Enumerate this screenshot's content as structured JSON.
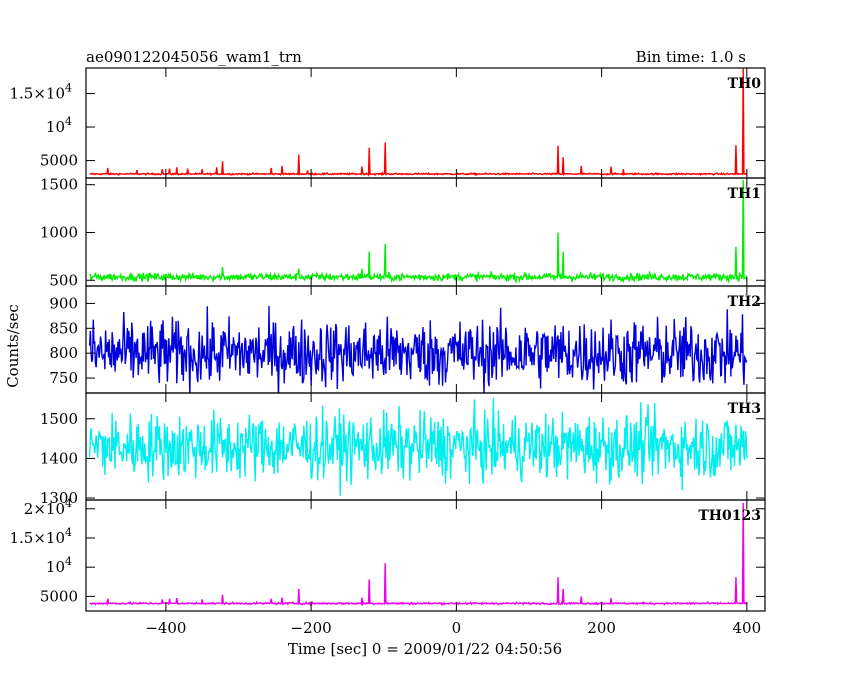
{
  "header": {
    "left_title": "ae090122045056_wam1_trn",
    "right_title": "Bin time: 1.0 s"
  },
  "chart_data": {
    "type": "line",
    "xlabel": "Time [sec] 0 = 2009/01/22 04:50:56",
    "ylabel": "Counts/sec",
    "xlim": [
      -510,
      425
    ],
    "x_ticks": [
      -400,
      -200,
      0,
      200,
      400
    ],
    "x_tick_labels": [
      "−400",
      "−200",
      "0",
      "200",
      "400"
    ],
    "panels": [
      {
        "name": "TH0",
        "color": "#ff0000",
        "ylim": [
          2400,
          18800
        ],
        "y_ticks": [
          {
            "value": 15000,
            "label_base": "1.5×10",
            "label_exp": "4"
          },
          {
            "value": 10000,
            "label_base": "10",
            "label_exp": "4"
          },
          {
            "value": 5000,
            "label_base": "5000",
            "label_exp": ""
          }
        ],
        "baseline": 3000,
        "noise": 60,
        "range": [
          -505,
          400
        ],
        "spikes": [
          [
            -480,
            3900
          ],
          [
            -440,
            3600
          ],
          [
            -405,
            3700
          ],
          [
            -395,
            3800
          ],
          [
            -385,
            4000
          ],
          [
            -370,
            3800
          ],
          [
            -350,
            3700
          ],
          [
            -330,
            4000
          ],
          [
            -322,
            4900
          ],
          [
            -255,
            3900
          ],
          [
            -240,
            4200
          ],
          [
            -217,
            5900
          ],
          [
            -205,
            3500
          ],
          [
            -130,
            4100
          ],
          [
            -120,
            6900
          ],
          [
            -98,
            7700
          ],
          [
            140,
            7200
          ],
          [
            147,
            5500
          ],
          [
            172,
            4200
          ],
          [
            213,
            4100
          ],
          [
            230,
            3700
          ],
          [
            385,
            7300
          ],
          [
            395,
            18700
          ]
        ]
      },
      {
        "name": "TH1",
        "color": "#00ee00",
        "ylim": [
          440,
          1570
        ],
        "y_ticks": [
          {
            "value": 1500,
            "label_base": "1500",
            "label_exp": ""
          },
          {
            "value": 1000,
            "label_base": "1000",
            "label_exp": ""
          },
          {
            "value": 500,
            "label_base": "500",
            "label_exp": ""
          }
        ],
        "baseline": 535,
        "noise": 20,
        "range": [
          -505,
          400
        ],
        "spikes": [
          [
            -322,
            640
          ],
          [
            -217,
            620
          ],
          [
            -130,
            620
          ],
          [
            -120,
            800
          ],
          [
            -98,
            880
          ],
          [
            140,
            1000
          ],
          [
            147,
            800
          ],
          [
            385,
            850
          ],
          [
            395,
            1550
          ]
        ]
      },
      {
        "name": "TH2",
        "color": "#0000dd",
        "ylim": [
          720,
          935
        ],
        "y_ticks": [
          {
            "value": 900,
            "label_base": "900",
            "label_exp": ""
          },
          {
            "value": 850,
            "label_base": "850",
            "label_exp": ""
          },
          {
            "value": 800,
            "label_base": "800",
            "label_exp": ""
          },
          {
            "value": 750,
            "label_base": "750",
            "label_exp": ""
          }
        ],
        "baseline": 800,
        "noise": 34,
        "range": [
          -505,
          400
        ],
        "spikes": []
      },
      {
        "name": "TH3",
        "color": "#00eeee",
        "ylim": [
          1295,
          1565
        ],
        "y_ticks": [
          {
            "value": 1500,
            "label_base": "1500",
            "label_exp": ""
          },
          {
            "value": 1400,
            "label_base": "1400",
            "label_exp": ""
          },
          {
            "value": 1300,
            "label_base": "1300",
            "label_exp": ""
          }
        ],
        "baseline": 1430,
        "noise": 42,
        "range": [
          -505,
          400
        ],
        "spikes": []
      },
      {
        "name": "TH0123",
        "color": "#ee00ee",
        "ylim": [
          2500,
          21500
        ],
        "y_ticks": [
          {
            "value": 20000,
            "label_base": "2×10",
            "label_exp": "4"
          },
          {
            "value": 15000,
            "label_base": "1.5×10",
            "label_exp": "4"
          },
          {
            "value": 10000,
            "label_base": "10",
            "label_exp": "4"
          },
          {
            "value": 5000,
            "label_base": "5000",
            "label_exp": ""
          }
        ],
        "baseline": 3800,
        "noise": 80,
        "range": [
          -505,
          400
        ],
        "spikes": [
          [
            -480,
            4600
          ],
          [
            -405,
            4500
          ],
          [
            -395,
            4600
          ],
          [
            -385,
            4700
          ],
          [
            -350,
            4500
          ],
          [
            -322,
            5300
          ],
          [
            -255,
            4600
          ],
          [
            -240,
            4800
          ],
          [
            -217,
            6300
          ],
          [
            -130,
            4800
          ],
          [
            -120,
            7900
          ],
          [
            -98,
            10700
          ],
          [
            140,
            8300
          ],
          [
            147,
            6300
          ],
          [
            172,
            5000
          ],
          [
            213,
            4700
          ],
          [
            385,
            8300
          ],
          [
            395,
            21000
          ]
        ]
      }
    ]
  }
}
